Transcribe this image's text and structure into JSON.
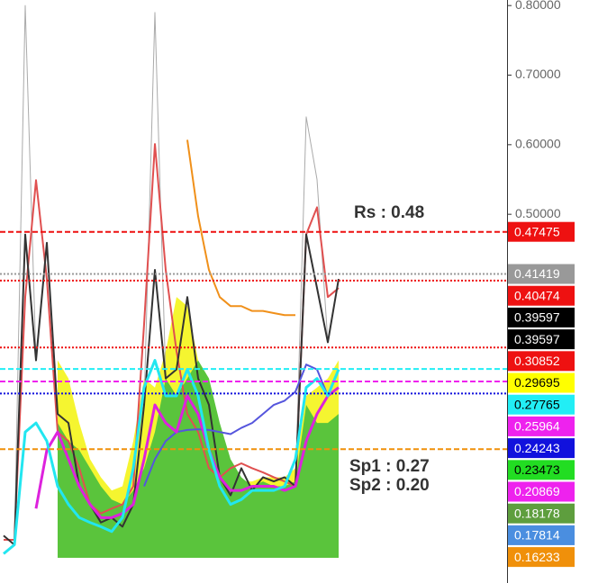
{
  "chart_data": {
    "type": "line",
    "ylim": [
      -0.03,
      0.808
    ],
    "yticks": [
      {
        "value": 0.8,
        "label": "0.80000"
      },
      {
        "value": 0.7,
        "label": "0.70000"
      },
      {
        "value": 0.6,
        "label": "0.60000"
      },
      {
        "value": 0.5,
        "label": "0.50000"
      }
    ],
    "annotations": [
      {
        "text": "Rs : 0.48",
        "value": 0.48
      },
      {
        "text": "Sp1 : 0.27",
        "value": 0.27
      },
      {
        "text": "Sp2 : 0.20",
        "value": 0.2
      }
    ],
    "series": [
      {
        "kind": "area",
        "color": "#f5f530",
        "values": [
          null,
          null,
          null,
          null,
          null,
          0.29,
          0.264,
          0.2,
          0.148,
          0.122,
          0.103,
          0.109,
          0.174,
          0.264,
          0.251,
          0.303,
          0.381,
          0.368,
          0.29,
          0.226,
          0.135,
          0.122,
          0.116,
          0.116,
          0.122,
          0.122,
          0.122,
          0.135,
          0.239,
          0.251,
          0.264,
          0.29
        ]
      },
      {
        "kind": "area",
        "color": "#5ac43c",
        "values": [
          null,
          null,
          null,
          null,
          null,
          0.2,
          0.174,
          0.161,
          0.135,
          0.109,
          0.09,
          0.083,
          0.103,
          0.135,
          0.187,
          0.264,
          0.239,
          0.264,
          0.29,
          0.264,
          0.2,
          0.148,
          0.122,
          0.109,
          0.116,
          0.109,
          0.109,
          0.116,
          0.226,
          0.2,
          0.2,
          0.213
        ]
      },
      {
        "kind": "line",
        "color": "#aaaaaa",
        "width": 1,
        "values": [
          0.038,
          0.025,
          0.8,
          0.29,
          0.459,
          0.213,
          0.2,
          0.109,
          0.083,
          0.057,
          0.064,
          0.051,
          0.083,
          0.226,
          0.79,
          0.264,
          0.277,
          0.381,
          0.264,
          0.226,
          0.122,
          0.096,
          0.135,
          0.103,
          0.122,
          0.116,
          0.122,
          0.109,
          0.64,
          0.55,
          0.316,
          0.407
        ]
      },
      {
        "kind": "line",
        "color": "#e05050",
        "width": 2,
        "values": [
          0.032,
          0.032,
          0.381,
          0.549,
          0.407,
          0.187,
          0.174,
          0.135,
          0.083,
          0.07,
          0.077,
          0.083,
          0.109,
          0.342,
          0.601,
          0.42,
          0.303,
          0.213,
          0.187,
          0.135,
          0.122,
          0.135,
          0.142,
          0.135,
          0.129,
          0.122,
          0.116,
          0.109,
          0.471,
          0.51,
          0.381,
          0.394
        ]
      },
      {
        "kind": "line",
        "color": "#333333",
        "width": 2,
        "values": [
          0.038,
          0.025,
          0.471,
          0.29,
          0.459,
          0.213,
          0.2,
          0.109,
          0.083,
          0.057,
          0.064,
          0.051,
          0.083,
          0.226,
          0.42,
          0.264,
          0.277,
          0.381,
          0.264,
          0.226,
          0.122,
          0.096,
          0.135,
          0.103,
          0.122,
          0.116,
          0.122,
          0.109,
          0.471,
          0.394,
          0.316,
          0.407
        ]
      },
      {
        "kind": "line",
        "color": "#f0901a",
        "width": 2,
        "values": [
          null,
          null,
          null,
          null,
          null,
          null,
          null,
          null,
          null,
          null,
          null,
          null,
          null,
          null,
          null,
          null,
          null,
          0.607,
          0.497,
          0.42,
          0.381,
          0.368,
          0.368,
          0.361,
          0.361,
          0.358,
          0.355,
          0.355,
          null,
          null,
          null,
          null
        ]
      },
      {
        "kind": "line",
        "color": "#5555dd",
        "width": 2,
        "values": [
          null,
          null,
          null,
          null,
          null,
          null,
          null,
          null,
          null,
          null,
          null,
          null,
          null,
          0.109,
          0.148,
          0.174,
          0.187,
          0.19,
          0.191,
          0.19,
          0.187,
          0.184,
          0.193,
          0.2,
          0.213,
          0.226,
          0.232,
          0.245,
          0.284,
          0.277,
          0.239,
          null
        ]
      },
      {
        "kind": "line",
        "color": "#dd22dd",
        "width": 3,
        "values": [
          null,
          null,
          null,
          0.077,
          0.161,
          0.187,
          0.148,
          0.109,
          0.083,
          0.064,
          0.064,
          0.07,
          0.083,
          0.148,
          0.226,
          0.2,
          0.187,
          0.239,
          0.213,
          0.161,
          0.122,
          0.103,
          0.103,
          0.109,
          0.109,
          0.109,
          0.103,
          0.109,
          0.174,
          0.213,
          0.239,
          0.251
        ]
      },
      {
        "kind": "line",
        "color": "#22e6f0",
        "width": 3,
        "values": [
          0.012,
          0.025,
          0.187,
          0.2,
          0.174,
          0.109,
          0.083,
          0.064,
          0.057,
          0.051,
          0.044,
          0.064,
          0.135,
          0.251,
          0.29,
          0.239,
          0.239,
          0.277,
          0.239,
          0.161,
          0.109,
          0.083,
          0.09,
          0.103,
          0.103,
          0.103,
          0.109,
          0.148,
          0.251,
          0.264,
          0.239,
          0.277
        ]
      }
    ],
    "price_labels": [
      {
        "value": 0.47475,
        "bg": "#ee1111",
        "fg": "#ffffff",
        "line": "dash"
      },
      {
        "value": 0.41419,
        "bg": "#999999",
        "fg": "#ffffff",
        "line": "dot"
      },
      {
        "value": 0.40474,
        "bg": "#ee1111",
        "fg": "#ffffff",
        "line": "dot"
      },
      {
        "value": 0.39597,
        "bg": "#000000",
        "fg": "#ffffff",
        "line": null
      },
      {
        "value": 0.39597,
        "bg": "#000000",
        "fg": "#ffffff",
        "line": null
      },
      {
        "value": 0.30852,
        "bg": "#ee1111",
        "fg": "#ffffff",
        "line": "dot"
      },
      {
        "value": 0.29695,
        "bg": "#ffff00",
        "fg": "#000000",
        "line": null
      },
      {
        "value": 0.27765,
        "bg": "#22eef5",
        "fg": "#000000",
        "line": "dash"
      },
      {
        "value": 0.25964,
        "bg": "#ee22ee",
        "fg": "#ffffff",
        "line": "dash"
      },
      {
        "value": 0.24243,
        "bg": "#1111dd",
        "fg": "#ffffff",
        "line": "dot"
      },
      {
        "value": 0.23473,
        "bg": "#22dd22",
        "fg": "#000000",
        "line": null
      },
      {
        "value": 0.20869,
        "bg": "#ee22ee",
        "fg": "#ffffff",
        "line": null
      },
      {
        "value": 0.18178,
        "bg": "#5e9e3e",
        "fg": "#ffffff",
        "line": null
      },
      {
        "value": 0.17814,
        "bg": "#4a8ee0",
        "fg": "#ffffff",
        "line": null
      },
      {
        "value": 0.16233,
        "bg": "#f0900a",
        "fg": "#ffffff",
        "line": "dash"
      }
    ]
  }
}
